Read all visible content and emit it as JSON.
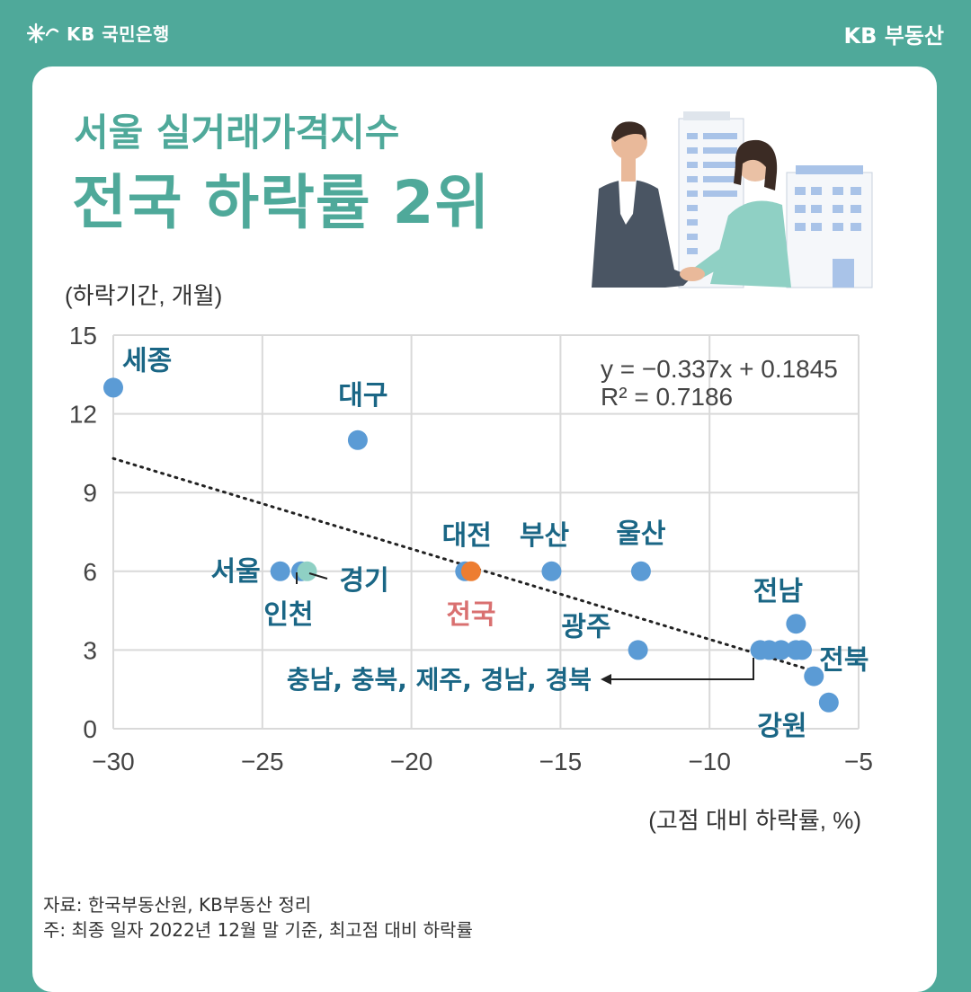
{
  "header": {
    "bank_logo_text": "KB 국민은행",
    "brand_right": "KB 부동산"
  },
  "title": {
    "subtitle": "서울 실거래가격지수",
    "main": "전국 하락률 2위"
  },
  "chart_data": {
    "type": "scatter",
    "ylabel": "(하락기간, 개월)",
    "xlabel": "(고점 대비 하락률, %)",
    "xlim": [
      -30,
      -5
    ],
    "ylim": [
      0,
      15
    ],
    "xticks": [
      -30,
      -25,
      -20,
      -15,
      -10,
      -5
    ],
    "yticks": [
      0,
      3,
      6,
      9,
      12,
      15
    ],
    "grid": true,
    "equation": "y = −0.337x + 0.1845",
    "r_squared": "R² = 0.7186",
    "trendline": {
      "slope": -0.337,
      "intercept": 0.1845
    },
    "points": [
      {
        "label": "세종",
        "x": -30.0,
        "y": 13,
        "color": "#5b9bd5"
      },
      {
        "label": "대구",
        "x": -21.8,
        "y": 11,
        "color": "#5b9bd5"
      },
      {
        "label": "서울",
        "x": -24.4,
        "y": 6,
        "color": "#5b9bd5"
      },
      {
        "label": "인천",
        "x": -23.7,
        "y": 6,
        "color": "#5b9bd5"
      },
      {
        "label": "경기",
        "x": -23.5,
        "y": 6,
        "color": "#8fd0c4"
      },
      {
        "label": "대전",
        "x": -18.2,
        "y": 6,
        "color": "#5b9bd5"
      },
      {
        "label": "전국",
        "x": -18.0,
        "y": 6,
        "color": "#ed7d31"
      },
      {
        "label": "부산",
        "x": -15.3,
        "y": 6,
        "color": "#5b9bd5"
      },
      {
        "label": "울산",
        "x": -12.3,
        "y": 6,
        "color": "#5b9bd5"
      },
      {
        "label": "광주",
        "x": -12.4,
        "y": 3,
        "color": "#5b9bd5"
      },
      {
        "label": "충남",
        "x": -8.3,
        "y": 3,
        "color": "#5b9bd5"
      },
      {
        "label": "충북",
        "x": -8.0,
        "y": 3,
        "color": "#5b9bd5"
      },
      {
        "label": "제주",
        "x": -7.6,
        "y": 3,
        "color": "#5b9bd5"
      },
      {
        "label": "경남",
        "x": -7.1,
        "y": 3,
        "color": "#5b9bd5"
      },
      {
        "label": "경북",
        "x": -6.9,
        "y": 3,
        "color": "#5b9bd5"
      },
      {
        "label": "전남",
        "x": -7.1,
        "y": 4,
        "color": "#5b9bd5"
      },
      {
        "label": "전북",
        "x": -6.5,
        "y": 2,
        "color": "#5b9bd5"
      },
      {
        "label": "강원",
        "x": -6.0,
        "y": 1,
        "color": "#5b9bd5"
      }
    ],
    "group_label": "충남, 충북, 제주, 경남, 경북"
  },
  "footnotes": {
    "source": "자료: 한국부동산원, KB부동산 정리",
    "note": "주: 최종 일자 2022년 12월 말 기준, 최고점 대비 하락률"
  }
}
